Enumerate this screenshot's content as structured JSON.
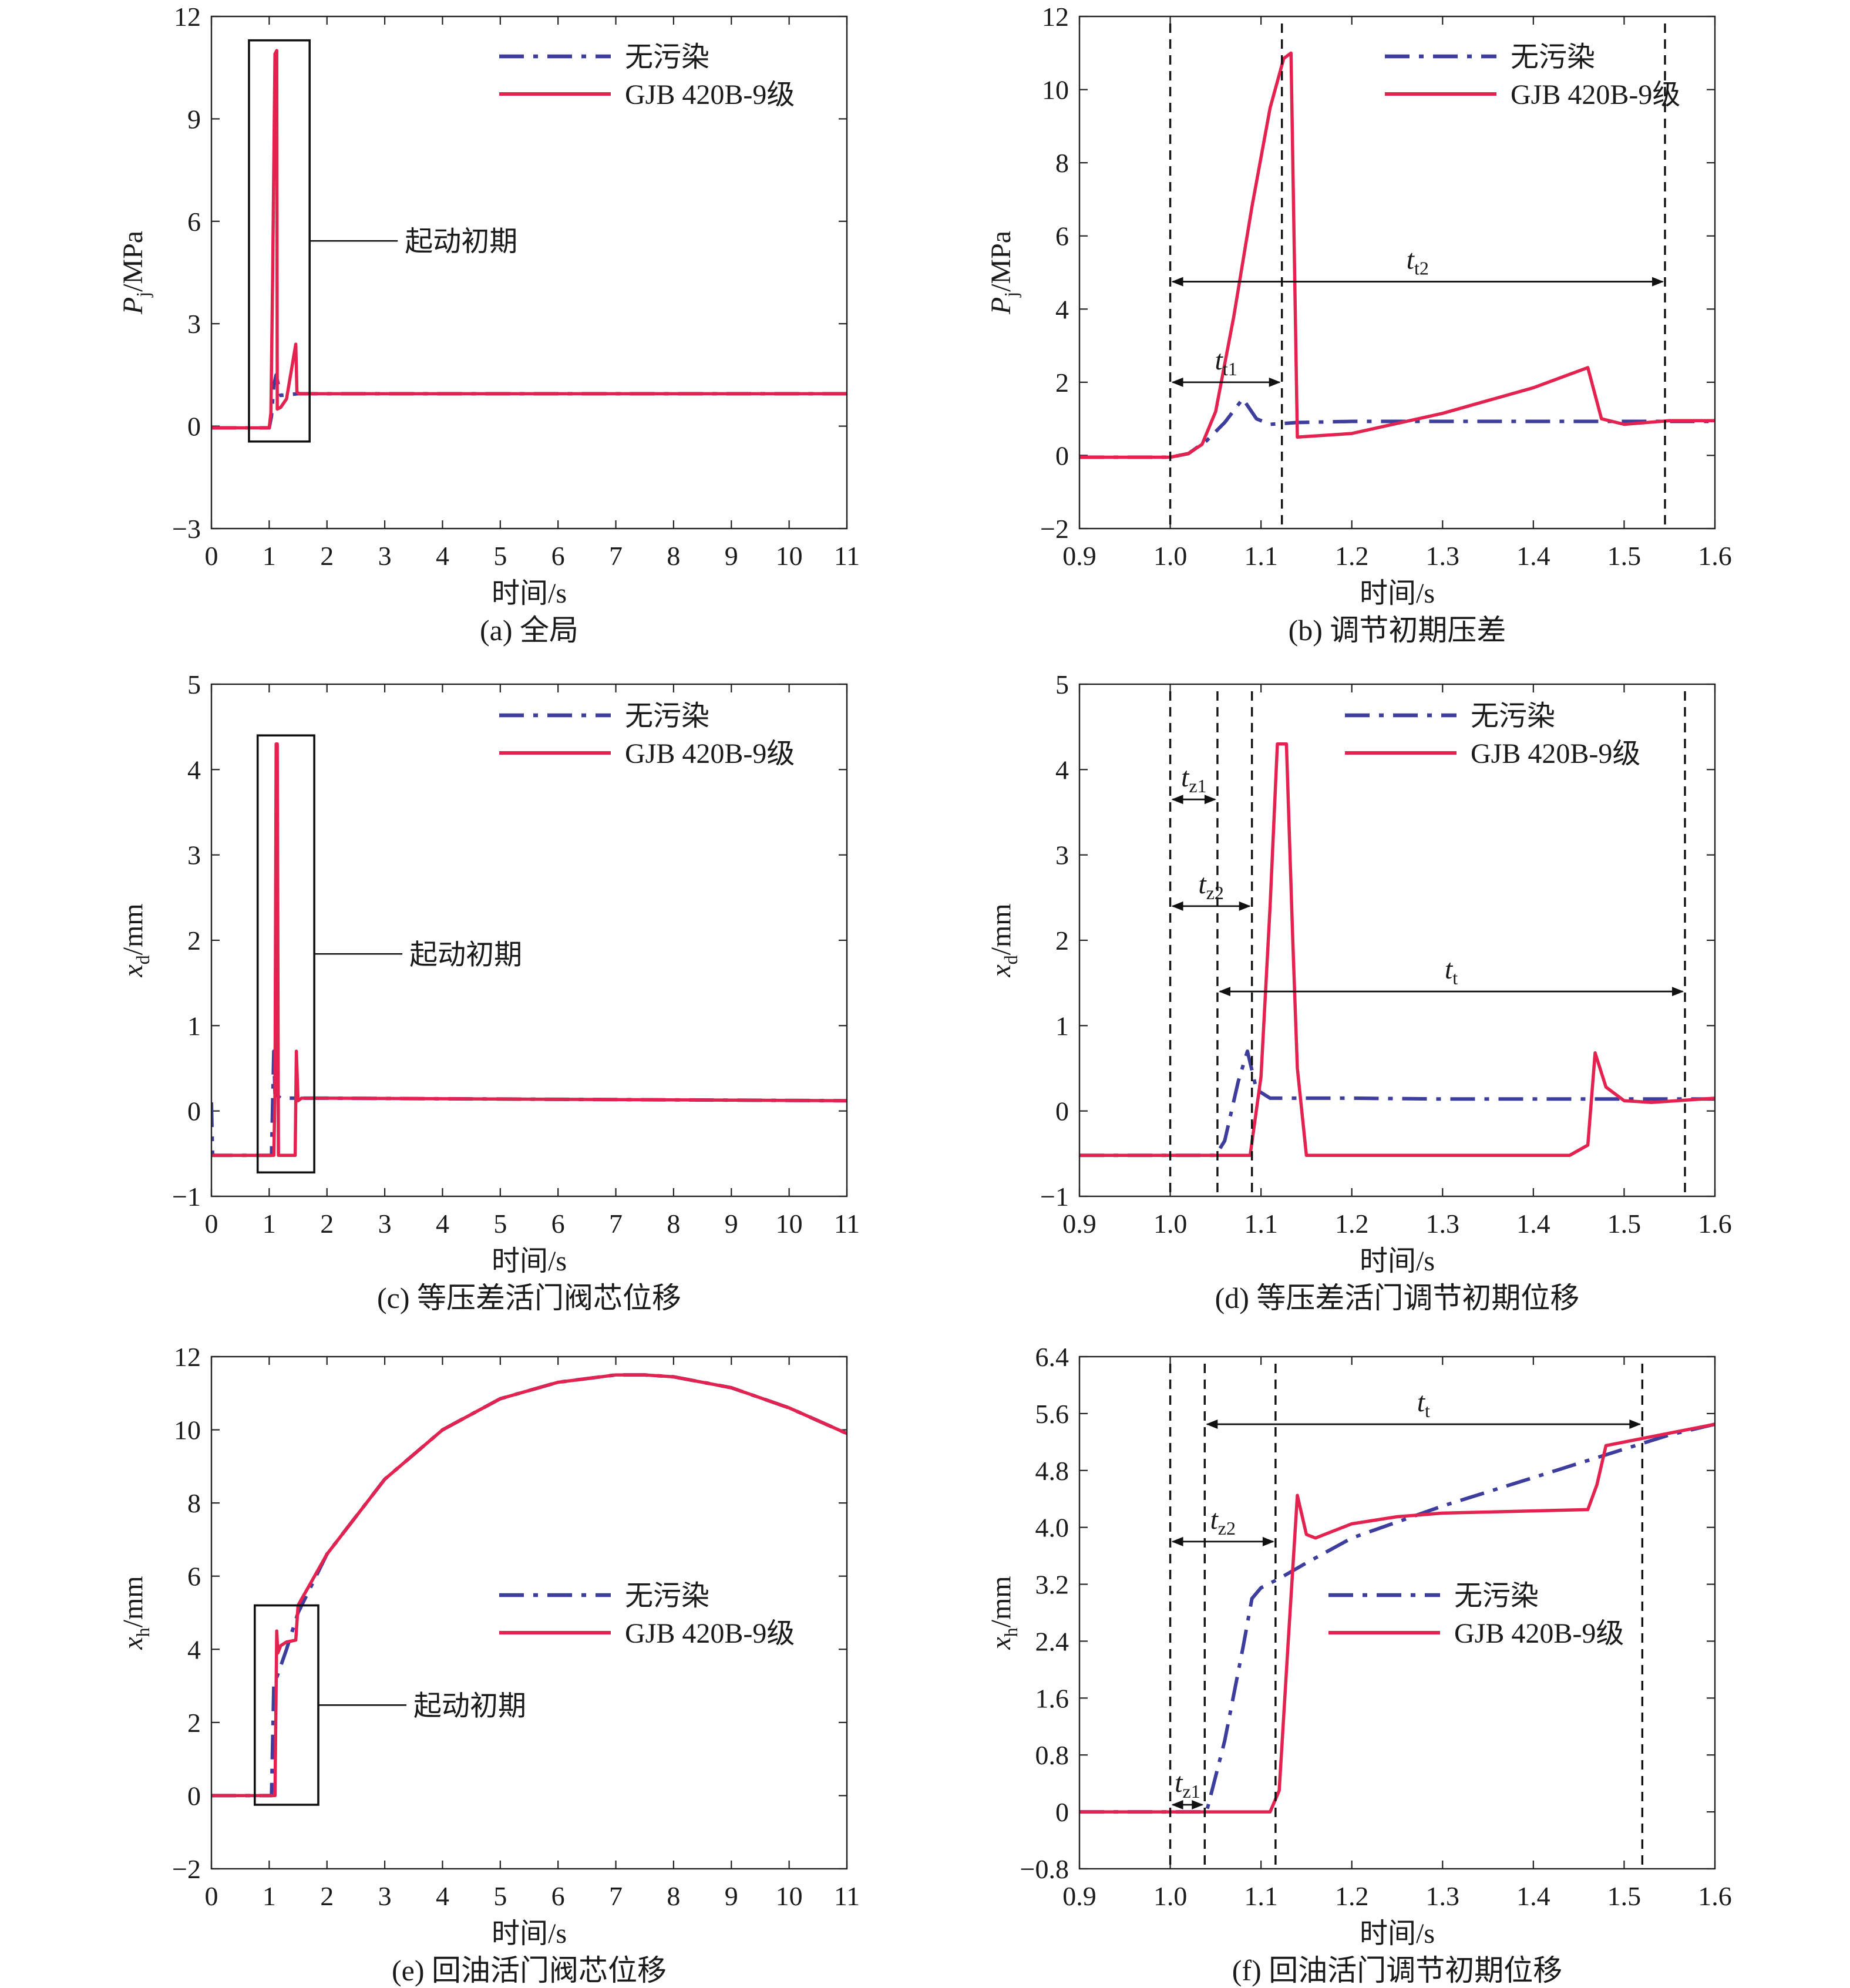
{
  "chart_data": [
    {
      "id": "a",
      "type": "line",
      "caption": "(a) 全局",
      "xlabel": "时间/s",
      "ylabel": "P_j/MPa",
      "xlim": [
        0,
        11
      ],
      "ylim": [
        -3,
        12
      ],
      "xticks": [
        0,
        1,
        2,
        3,
        4,
        5,
        6,
        7,
        8,
        9,
        10,
        11
      ],
      "xtick_labels": [
        "0",
        "1",
        "2",
        "3",
        "4",
        "5",
        "6",
        "7",
        "8",
        "9",
        "10",
        "11"
      ],
      "yticks": [
        -3,
        0,
        3,
        6,
        9,
        12
      ],
      "ytick_labels": [
        "−3",
        "0",
        "3",
        "6",
        "9",
        "12"
      ],
      "legend": {
        "position": "top-right"
      },
      "series": [
        {
          "name": "无污染",
          "style": "dashdot",
          "color": "#3d3d9e",
          "x": [
            0,
            1.0,
            1.04,
            1.08,
            1.12,
            1.2,
            1.5,
            11
          ],
          "y": [
            -0.05,
            -0.05,
            0.3,
            1.2,
            1.5,
            0.9,
            0.95,
            0.95
          ]
        },
        {
          "name": "GJB 420B-9级",
          "style": "solid",
          "color": "#e3224f",
          "x": [
            0,
            1.0,
            1.03,
            1.06,
            1.1,
            1.13,
            1.14,
            1.2,
            1.3,
            1.46,
            1.48,
            1.52,
            11
          ],
          "y": [
            -0.05,
            -0.05,
            0.4,
            4.5,
            10.9,
            11.0,
            0.5,
            0.55,
            0.8,
            2.4,
            1.0,
            0.95,
            0.95
          ]
        }
      ],
      "annotations": [
        {
          "kind": "box",
          "label": "起动初期",
          "x": [
            0.65,
            1.7
          ],
          "y": [
            -0.45,
            11.3
          ]
        }
      ]
    },
    {
      "id": "b",
      "type": "line",
      "caption": "(b) 调节初期压差",
      "xlabel": "时间/s",
      "ylabel": "P_j/MPa",
      "xlim": [
        0.9,
        1.6
      ],
      "ylim": [
        -2,
        12
      ],
      "xticks": [
        0.9,
        1.0,
        1.1,
        1.2,
        1.3,
        1.4,
        1.5,
        1.6
      ],
      "xtick_labels": [
        "0.9",
        "1.0",
        "1.1",
        "1.2",
        "1.3",
        "1.4",
        "1.5",
        "1.6"
      ],
      "yticks": [
        -2,
        0,
        2,
        4,
        6,
        8,
        10,
        12
      ],
      "ytick_labels": [
        "−2",
        "0",
        "2",
        "4",
        "6",
        "8",
        "10",
        "12"
      ],
      "legend": {
        "position": "top-right"
      },
      "series": [
        {
          "name": "无污染",
          "style": "dashdot",
          "color": "#3d3d9e",
          "x": [
            0.9,
            1.0,
            1.02,
            1.04,
            1.06,
            1.08,
            1.095,
            1.11,
            1.14,
            1.2,
            1.3,
            1.4,
            1.5,
            1.6
          ],
          "y": [
            -0.05,
            -0.05,
            0.05,
            0.4,
            0.9,
            1.55,
            1.0,
            0.85,
            0.9,
            0.93,
            0.93,
            0.93,
            0.93,
            0.93
          ]
        },
        {
          "name": "GJB 420B-9级",
          "style": "solid",
          "color": "#e3224f",
          "x": [
            0.9,
            1.0,
            1.02,
            1.035,
            1.05,
            1.07,
            1.09,
            1.11,
            1.125,
            1.133,
            1.14,
            1.2,
            1.3,
            1.4,
            1.46,
            1.475,
            1.5,
            1.55,
            1.6
          ],
          "y": [
            -0.05,
            -0.05,
            0.05,
            0.3,
            1.2,
            3.8,
            6.8,
            9.5,
            10.85,
            11.0,
            0.5,
            0.6,
            1.15,
            1.85,
            2.4,
            1.0,
            0.85,
            0.95,
            0.95
          ]
        }
      ],
      "annotations": [
        {
          "kind": "vline",
          "x": 1.0
        },
        {
          "kind": "vline",
          "x": 1.123
        },
        {
          "kind": "vline",
          "x": 1.545
        },
        {
          "kind": "span",
          "label": "t",
          "subscript": "t1",
          "x": [
            1.0,
            1.123
          ],
          "y": 2.0
        },
        {
          "kind": "span",
          "label": "t",
          "subscript": "t2",
          "x": [
            1.0,
            1.545
          ],
          "y": 4.75
        }
      ]
    },
    {
      "id": "c",
      "type": "line",
      "caption": "(c) 等压差活门阀芯位移",
      "xlabel": "时间/s",
      "ylabel": "x_d/mm",
      "xlim": [
        0,
        11
      ],
      "ylim": [
        -1,
        5
      ],
      "xticks": [
        0,
        1,
        2,
        3,
        4,
        5,
        6,
        7,
        8,
        9,
        10,
        11
      ],
      "xtick_labels": [
        "0",
        "1",
        "2",
        "3",
        "4",
        "5",
        "6",
        "7",
        "8",
        "9",
        "10",
        "11"
      ],
      "yticks": [
        -1,
        0,
        1,
        2,
        3,
        4,
        5
      ],
      "ytick_labels": [
        "−1",
        "0",
        "1",
        "2",
        "3",
        "4",
        "5"
      ],
      "legend": {
        "position": "top-right"
      },
      "series": [
        {
          "name": "无污染",
          "style": "dashdot",
          "color": "#3d3d9e",
          "x": [
            0,
            0.02,
            0.05,
            1.04,
            1.08,
            1.1,
            1.2,
            2,
            11
          ],
          "y": [
            0.1,
            -0.52,
            -0.52,
            -0.52,
            0.7,
            0.2,
            0.15,
            0.15,
            0.12
          ]
        },
        {
          "name": "GJB 420B-9级",
          "style": "solid",
          "color": "#e3224f",
          "x": [
            0,
            1.08,
            1.1,
            1.12,
            1.14,
            1.16,
            1.18,
            1.45,
            1.47,
            1.5,
            1.56,
            2,
            11
          ],
          "y": [
            -0.52,
            -0.52,
            0.2,
            4.3,
            4.3,
            -0.52,
            -0.52,
            -0.52,
            0.7,
            0.12,
            0.15,
            0.15,
            0.12
          ]
        }
      ],
      "annotations": [
        {
          "kind": "box",
          "label": "起动初期",
          "x": [
            0.8,
            1.78
          ],
          "y": [
            -0.72,
            4.4
          ]
        }
      ]
    },
    {
      "id": "d",
      "type": "line",
      "caption": "(d) 等压差活门调节初期位移",
      "xlabel": "时间/s",
      "ylabel": "x_d/mm",
      "xlim": [
        0.9,
        1.6
      ],
      "ylim": [
        -1,
        5
      ],
      "xticks": [
        0.9,
        1.0,
        1.1,
        1.2,
        1.3,
        1.4,
        1.5,
        1.6
      ],
      "xtick_labels": [
        "0.9",
        "1.0",
        "1.1",
        "1.2",
        "1.3",
        "1.4",
        "1.5",
        "1.6"
      ],
      "yticks": [
        -1,
        0,
        1,
        2,
        3,
        4,
        5
      ],
      "ytick_labels": [
        "−1",
        "0",
        "1",
        "2",
        "3",
        "4",
        "5"
      ],
      "legend": {
        "position": "top-right"
      },
      "series": [
        {
          "name": "无污染",
          "style": "dashdot",
          "color": "#3d3d9e",
          "x": [
            0.9,
            1.0,
            1.05,
            1.06,
            1.075,
            1.085,
            1.095,
            1.11,
            1.2,
            1.3,
            1.4,
            1.5,
            1.6
          ],
          "y": [
            -0.52,
            -0.52,
            -0.52,
            -0.35,
            0.35,
            0.7,
            0.25,
            0.15,
            0.15,
            0.14,
            0.14,
            0.14,
            0.14
          ]
        },
        {
          "name": "GJB 420B-9级",
          "style": "solid",
          "color": "#e3224f",
          "x": [
            0.9,
            1.0,
            1.088,
            1.1,
            1.11,
            1.118,
            1.128,
            1.135,
            1.14,
            1.15,
            1.3,
            1.44,
            1.46,
            1.468,
            1.48,
            1.5,
            1.53,
            1.6
          ],
          "y": [
            -0.52,
            -0.52,
            -0.52,
            0.4,
            2.4,
            4.3,
            4.3,
            2.0,
            0.5,
            -0.52,
            -0.52,
            -0.52,
            -0.4,
            0.68,
            0.28,
            0.12,
            0.1,
            0.15
          ]
        }
      ],
      "annotations": [
        {
          "kind": "vline",
          "x": 1.0
        },
        {
          "kind": "vline",
          "x": 1.052
        },
        {
          "kind": "vline",
          "x": 1.09
        },
        {
          "kind": "vline",
          "x": 1.567
        },
        {
          "kind": "span",
          "label": "t",
          "subscript": "z1",
          "x": [
            1.0,
            1.052
          ],
          "y": 3.65
        },
        {
          "kind": "span",
          "label": "t",
          "subscript": "z2",
          "x": [
            1.0,
            1.09
          ],
          "y": 2.4
        },
        {
          "kind": "span",
          "label": "t",
          "subscript": "t",
          "x": [
            1.052,
            1.567
          ],
          "y": 1.4
        }
      ]
    },
    {
      "id": "e",
      "type": "line",
      "caption": "(e) 回油活门阀芯位移",
      "xlabel": "时间/s",
      "ylabel": "x_h/mm",
      "xlim": [
        0,
        11
      ],
      "ylim": [
        -2,
        12
      ],
      "xticks": [
        0,
        1,
        2,
        3,
        4,
        5,
        6,
        7,
        8,
        9,
        10,
        11
      ],
      "xtick_labels": [
        "0",
        "1",
        "2",
        "3",
        "4",
        "5",
        "6",
        "7",
        "8",
        "9",
        "10",
        "11"
      ],
      "yticks": [
        -2,
        0,
        2,
        4,
        6,
        8,
        10,
        12
      ],
      "ytick_labels": [
        "−2",
        "0",
        "2",
        "4",
        "6",
        "8",
        "10",
        "12"
      ],
      "legend": {
        "position": "middle-right"
      },
      "series": [
        {
          "name": "无污染",
          "style": "dashdot",
          "color": "#3d3d9e",
          "x": [
            0,
            1.04,
            1.08,
            1.3,
            1.5,
            2,
            3,
            4,
            5,
            6,
            7,
            7.5,
            8,
            9,
            10,
            11
          ],
          "y": [
            0,
            0,
            3.0,
            4.0,
            5.0,
            6.6,
            8.65,
            10.0,
            10.85,
            11.3,
            11.5,
            11.5,
            11.45,
            11.15,
            10.6,
            9.9
          ]
        },
        {
          "name": "GJB 420B-9级",
          "style": "solid",
          "color": "#e3224f",
          "x": [
            0,
            1.1,
            1.13,
            1.15,
            1.2,
            1.3,
            1.46,
            1.5,
            2,
            3,
            4,
            5,
            6,
            7,
            7.5,
            8,
            9,
            10,
            11
          ],
          "y": [
            0,
            0,
            4.5,
            3.9,
            4.1,
            4.2,
            4.25,
            5.2,
            6.6,
            8.65,
            10.0,
            10.85,
            11.3,
            11.5,
            11.5,
            11.45,
            11.15,
            10.6,
            9.9
          ]
        }
      ],
      "annotations": [
        {
          "kind": "box",
          "label": "起动初期",
          "x": [
            0.75,
            1.85
          ],
          "y": [
            -0.25,
            5.2
          ]
        }
      ]
    },
    {
      "id": "f",
      "type": "line",
      "caption": "(f) 回油活门调节初期位移",
      "xlabel": "时间/s",
      "ylabel": "x_h/mm",
      "xlim": [
        0.9,
        1.6
      ],
      "ylim": [
        -0.8,
        6.4
      ],
      "xticks": [
        0.9,
        1.0,
        1.1,
        1.2,
        1.3,
        1.4,
        1.5,
        1.6
      ],
      "xtick_labels": [
        "0.9",
        "1.0",
        "1.1",
        "1.2",
        "1.3",
        "1.4",
        "1.5",
        "1.6"
      ],
      "yticks": [
        -0.8,
        0,
        0.8,
        1.6,
        2.4,
        3.2,
        4.0,
        4.8,
        5.6,
        6.4
      ],
      "ytick_labels": [
        "−0.8",
        "0",
        "0.8",
        "1.6",
        "2.4",
        "3.2",
        "4.0",
        "4.8",
        "5.6",
        "6.4"
      ],
      "legend": {
        "position": "middle-right"
      },
      "series": [
        {
          "name": "无污染",
          "style": "dashdot",
          "color": "#3d3d9e",
          "x": [
            0.9,
            1.0,
            1.04,
            1.06,
            1.08,
            1.09,
            1.1,
            1.12,
            1.15,
            1.2,
            1.3,
            1.4,
            1.5,
            1.55,
            1.6
          ],
          "y": [
            0,
            0,
            0,
            1.0,
            2.3,
            3.0,
            3.15,
            3.28,
            3.5,
            3.85,
            4.3,
            4.7,
            5.1,
            5.3,
            5.45
          ]
        },
        {
          "name": "GJB 420B-9级",
          "style": "solid",
          "color": "#e3224f",
          "x": [
            0.9,
            1.0,
            1.11,
            1.12,
            1.13,
            1.14,
            1.15,
            1.16,
            1.2,
            1.25,
            1.3,
            1.46,
            1.47,
            1.48,
            1.52,
            1.56,
            1.6
          ],
          "y": [
            0,
            0,
            0,
            0.3,
            2.4,
            4.45,
            3.9,
            3.85,
            4.05,
            4.15,
            4.2,
            4.25,
            4.6,
            5.15,
            5.25,
            5.35,
            5.45
          ]
        }
      ],
      "annotations": [
        {
          "kind": "vline",
          "x": 1.0
        },
        {
          "kind": "vline",
          "x": 1.038
        },
        {
          "kind": "vline",
          "x": 1.116
        },
        {
          "kind": "vline",
          "x": 1.52
        },
        {
          "kind": "span",
          "label": "t",
          "subscript": "t",
          "x": [
            1.038,
            1.52
          ],
          "y": 5.45
        },
        {
          "kind": "span",
          "label": "t",
          "subscript": "z2",
          "x": [
            1.0,
            1.116
          ],
          "y": 3.8
        },
        {
          "kind": "span",
          "label": "t",
          "subscript": "z1",
          "x": [
            1.0,
            1.038
          ],
          "y": 0.1
        }
      ]
    }
  ]
}
